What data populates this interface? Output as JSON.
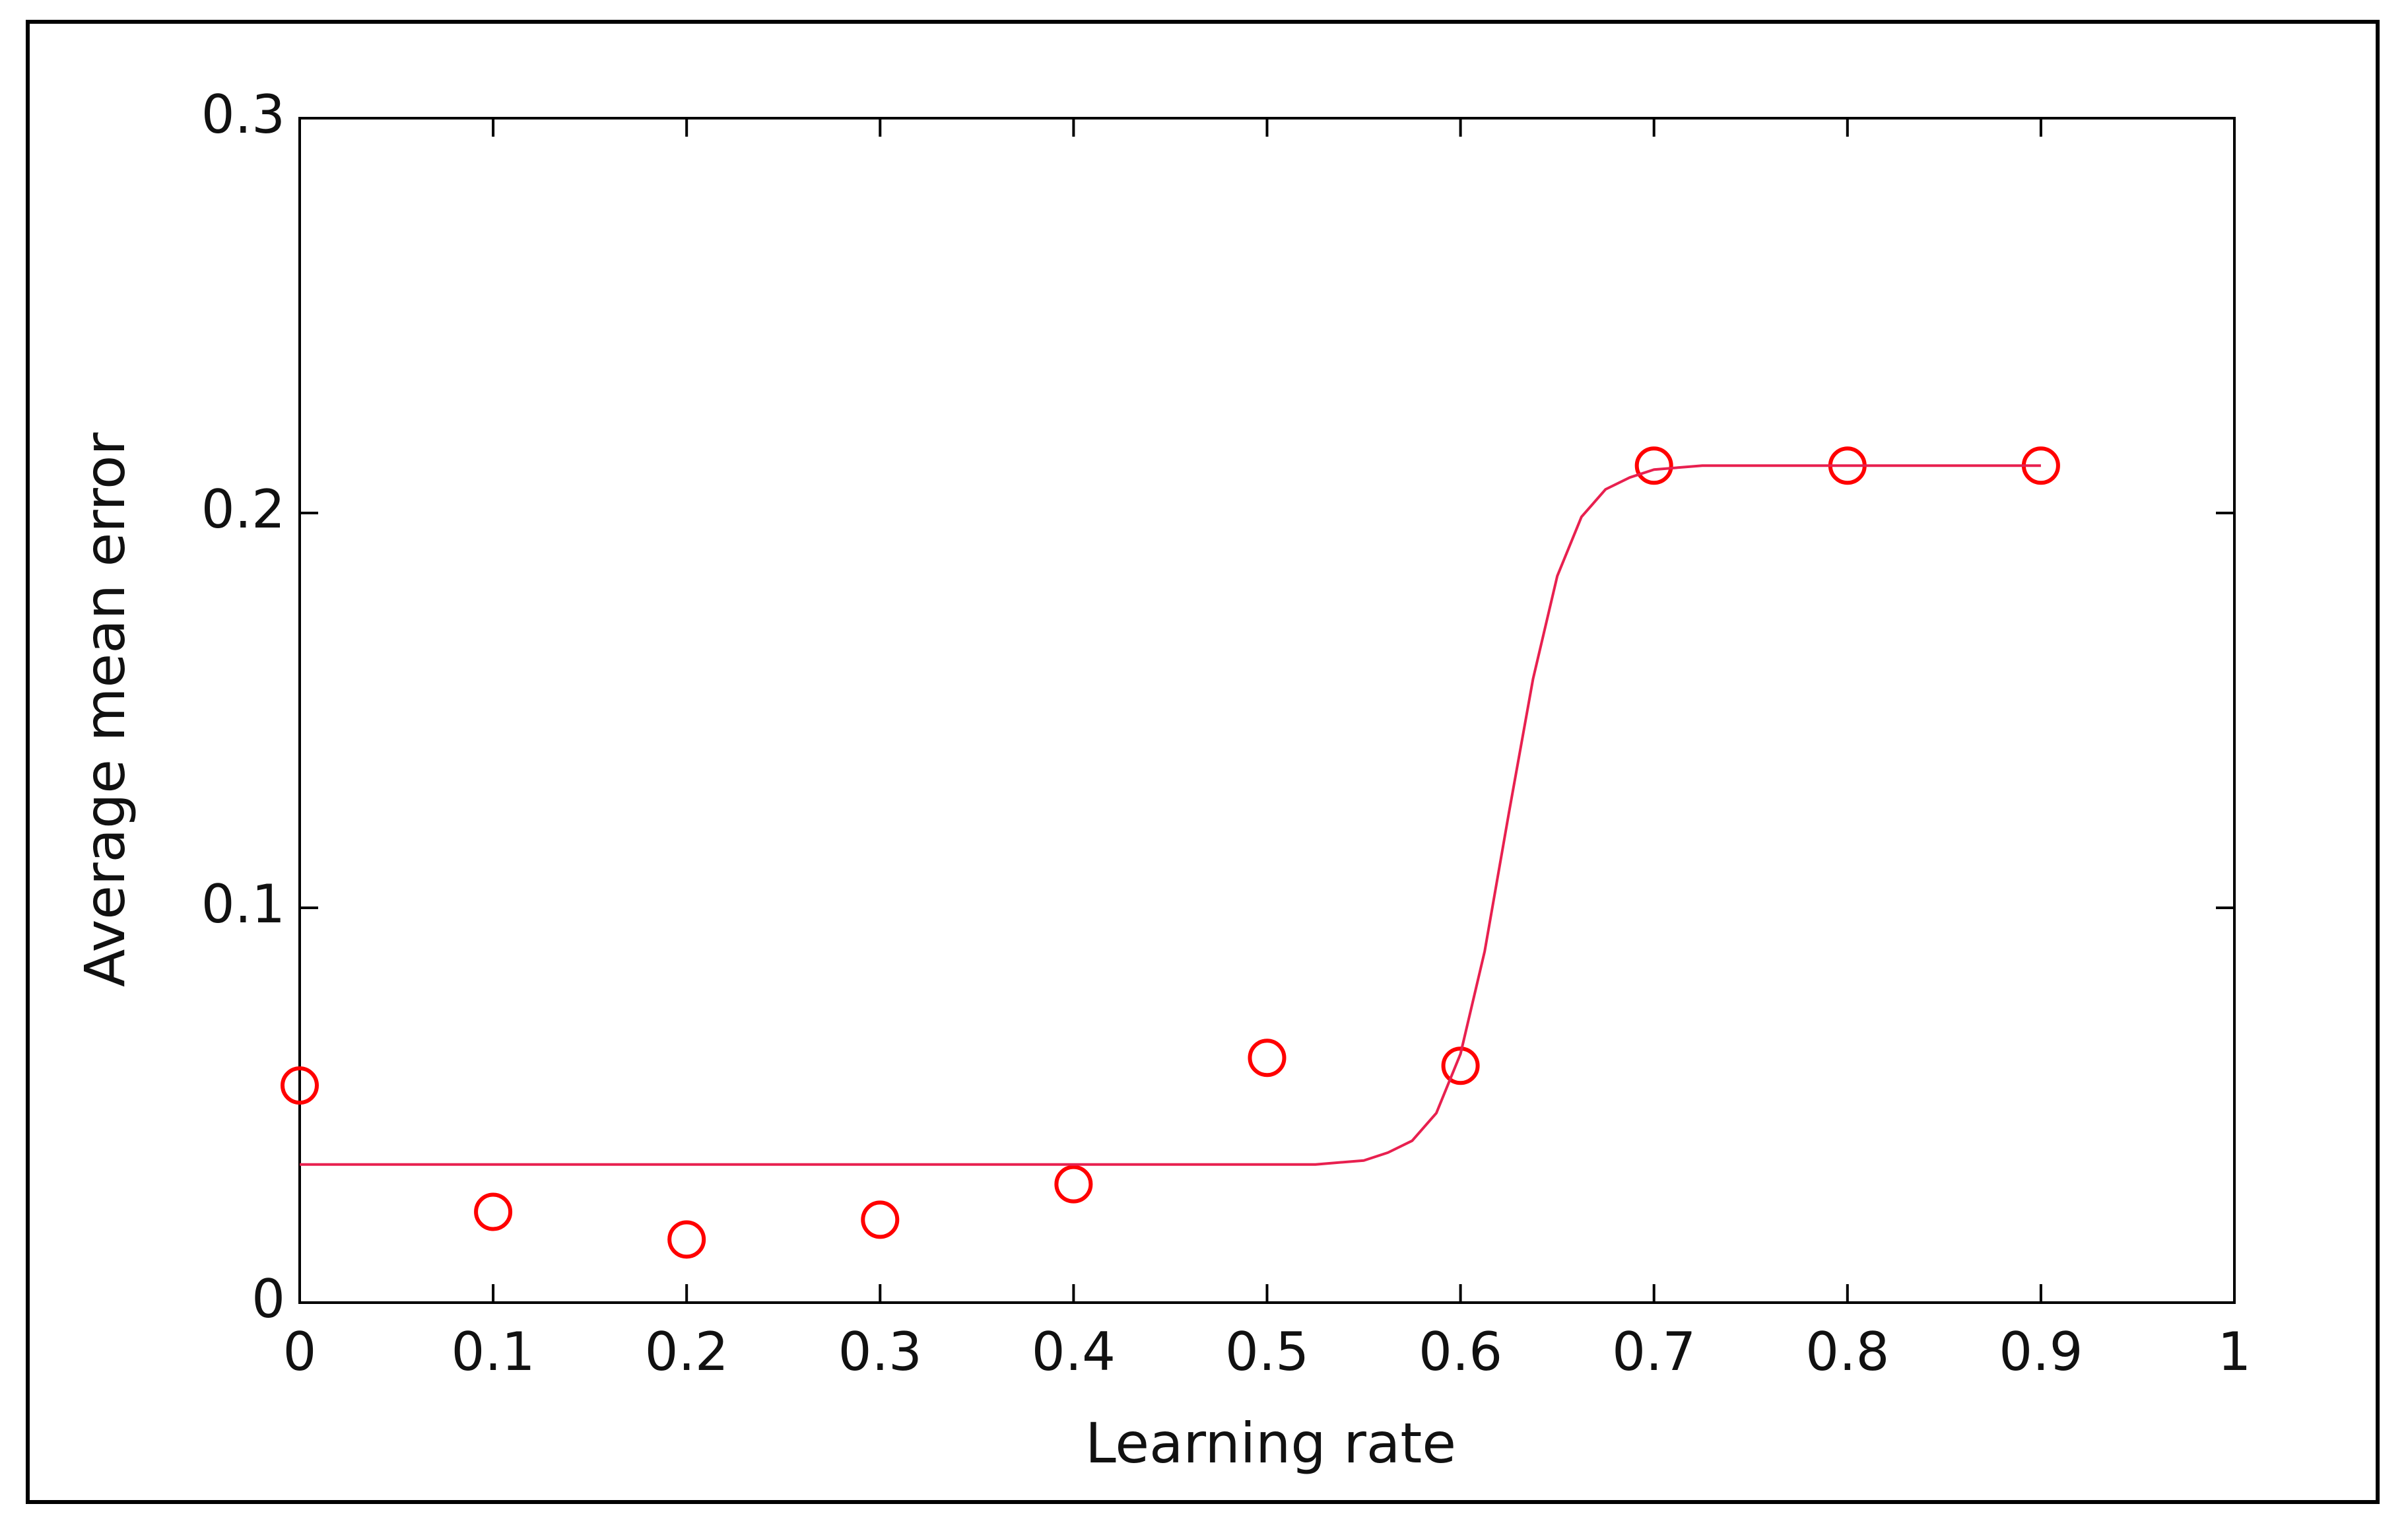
{
  "chart_data": {
    "type": "scatter",
    "xlabel": "Learning rate",
    "ylabel": "Average mean error",
    "xlim": [
      0,
      1
    ],
    "ylim": [
      0,
      0.3
    ],
    "xticks": [
      0,
      0.1,
      0.2,
      0.3,
      0.4,
      0.5,
      0.6,
      0.7,
      0.8,
      0.9,
      1
    ],
    "yticks": [
      0,
      0.1,
      0.2,
      0.3
    ],
    "grid": false,
    "series": [
      {
        "type": "scatter",
        "color": "#ff0000",
        "x": [
          0,
          0.1,
          0.2,
          0.3,
          0.4,
          0.5,
          0.6,
          0.7,
          0.8,
          0.9
        ],
        "values": [
          0.055,
          0.023,
          0.016,
          0.021,
          0.03,
          0.062,
          0.06,
          0.212,
          0.212,
          0.212
        ]
      },
      {
        "type": "line",
        "color": "#e8204f",
        "x": [
          0,
          0.05,
          0.1,
          0.15,
          0.2,
          0.25,
          0.3,
          0.35,
          0.4,
          0.45,
          0.5,
          0.525,
          0.55,
          0.5625,
          0.575,
          0.5875,
          0.6,
          0.6125,
          0.625,
          0.6375,
          0.65,
          0.6625,
          0.675,
          0.6875,
          0.7,
          0.725,
          0.75,
          0.8,
          0.85,
          0.9
        ],
        "values": [
          0.035,
          0.035,
          0.035,
          0.035,
          0.035,
          0.035,
          0.035,
          0.035,
          0.035,
          0.035,
          0.035,
          0.035,
          0.036,
          0.038,
          0.041,
          0.048,
          0.063,
          0.089,
          0.124,
          0.158,
          0.184,
          0.199,
          0.206,
          0.209,
          0.211,
          0.212,
          0.212,
          0.212,
          0.212,
          0.212
        ]
      }
    ]
  }
}
